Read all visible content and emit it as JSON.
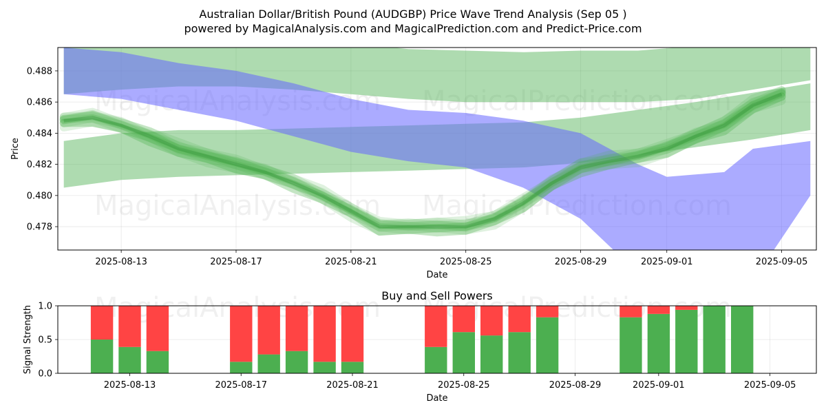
{
  "header": {
    "title": "Australian Dollar/British Pound (AUDGBP) Price Wave Trend Analysis (Sep 05 )",
    "subtitle": "powered by MagicalAnalysis.com and MagicalPrediction.com and Predict-Price.com"
  },
  "watermarks": [
    "MagicalAnalysis.com",
    "MagicalPrediction.com"
  ],
  "colors": {
    "green_band": "#4caf50",
    "blue_band": "#6666ff",
    "buy": "#4caf50",
    "sell": "#ff4444"
  },
  "chart_data": [
    {
      "type": "area",
      "title": "",
      "xlabel": "Date",
      "ylabel": "Price",
      "x_ticks": [
        "2025-08-13",
        "2025-08-17",
        "2025-08-21",
        "2025-08-25",
        "2025-08-29",
        "2025-09-01",
        "2025-09-05"
      ],
      "y_ticks": [
        "0.478",
        "0.480",
        "0.482",
        "0.484",
        "0.486",
        "0.488"
      ],
      "ylim": [
        0.4765,
        0.4895
      ],
      "xlim": [
        "2025-08-10T19:00",
        "2025-09-06T05:00"
      ],
      "grid": true,
      "series": [
        {
          "color": "blue",
          "x": [
            "2025-08-11",
            "2025-08-13",
            "2025-08-15",
            "2025-08-17",
            "2025-08-19",
            "2025-08-21",
            "2025-08-23",
            "2025-08-25",
            "2025-08-27",
            "2025-08-29",
            "2025-08-31",
            "2025-09-01",
            "2025-09-03",
            "2025-09-04",
            "2025-09-06"
          ],
          "upper": [
            0.4895,
            0.4892,
            0.4885,
            0.488,
            0.4872,
            0.4862,
            0.4855,
            0.4853,
            0.4848,
            0.484,
            0.482,
            0.4812,
            0.4815,
            0.483,
            0.4835
          ],
          "lower": [
            0.4865,
            0.4862,
            0.4855,
            0.4848,
            0.4838,
            0.4828,
            0.4822,
            0.4818,
            0.4805,
            0.4785,
            0.475,
            0.4712,
            0.4715,
            0.4745,
            0.48
          ]
        },
        {
          "color": "green",
          "x": [
            "2025-08-11",
            "2025-08-13",
            "2025-08-15",
            "2025-08-17",
            "2025-08-19",
            "2025-08-21",
            "2025-08-23",
            "2025-08-25",
            "2025-08-27",
            "2025-08-29",
            "2025-08-31",
            "2025-09-02",
            "2025-09-04",
            "2025-09-06"
          ],
          "upper": [
            0.49,
            0.49,
            0.49,
            0.49,
            0.49,
            0.4898,
            0.4894,
            0.4893,
            0.4892,
            0.4893,
            0.4893,
            0.4896,
            0.4899,
            0.49
          ],
          "lower": [
            0.4865,
            0.4868,
            0.487,
            0.487,
            0.4868,
            0.4865,
            0.4862,
            0.486,
            0.486,
            0.486,
            0.486,
            0.4862,
            0.4868,
            0.4874
          ]
        },
        {
          "color": "green",
          "x": [
            "2025-08-11",
            "2025-08-13",
            "2025-08-15",
            "2025-08-17",
            "2025-08-19",
            "2025-08-21",
            "2025-08-23",
            "2025-08-25",
            "2025-08-27",
            "2025-08-29",
            "2025-08-31",
            "2025-09-02",
            "2025-09-04",
            "2025-09-06"
          ],
          "upper": [
            0.4835,
            0.484,
            0.4842,
            0.4842,
            0.4843,
            0.4844,
            0.4845,
            0.4846,
            0.4847,
            0.485,
            0.4855,
            0.486,
            0.4866,
            0.4872
          ],
          "lower": [
            0.4805,
            0.481,
            0.4812,
            0.4813,
            0.4814,
            0.4815,
            0.4816,
            0.4817,
            0.4818,
            0.4821,
            0.4826,
            0.4831,
            0.4836,
            0.4842
          ]
        },
        {
          "color": "green",
          "x": [
            "2025-08-11",
            "2025-08-12",
            "2025-08-13",
            "2025-08-14",
            "2025-08-15",
            "2025-08-16",
            "2025-08-17",
            "2025-08-18",
            "2025-08-19",
            "2025-08-20",
            "2025-08-21",
            "2025-08-22",
            "2025-08-23",
            "2025-08-24",
            "2025-08-25",
            "2025-08-26",
            "2025-08-27",
            "2025-08-28",
            "2025-08-29",
            "2025-08-30",
            "2025-08-31",
            "2025-09-01",
            "2025-09-02",
            "2025-09-03",
            "2025-09-04",
            "2025-09-05"
          ],
          "y": [
            0.4848,
            0.485,
            0.4845,
            0.4838,
            0.483,
            0.4825,
            0.482,
            0.4815,
            0.4808,
            0.48,
            0.479,
            0.478,
            0.478,
            0.478,
            0.478,
            0.4785,
            0.4795,
            0.4808,
            0.4818,
            0.4822,
            0.4825,
            0.483,
            0.4838,
            0.4845,
            0.4858,
            0.4865
          ]
        }
      ]
    },
    {
      "type": "bar",
      "title": "Buy and Sell Powers",
      "xlabel": "Date",
      "ylabel": "Signal Strength",
      "ylim": [
        0,
        1
      ],
      "y_ticks": [
        "0.0",
        "0.5",
        "1.0"
      ],
      "x_ticks": [
        "2025-08-13",
        "2025-08-17",
        "2025-08-21",
        "2025-08-25",
        "2025-08-29",
        "2025-09-01",
        "2025-09-05"
      ],
      "grid": true,
      "categories": [
        "2025-08-12",
        "2025-08-13",
        "2025-08-14",
        "2025-08-17",
        "2025-08-18",
        "2025-08-19",
        "2025-08-20",
        "2025-08-21",
        "2025-08-24",
        "2025-08-25",
        "2025-08-26",
        "2025-08-27",
        "2025-08-28",
        "2025-08-31",
        "2025-09-01",
        "2025-09-02",
        "2025-09-03",
        "2025-09-04"
      ],
      "series": [
        {
          "values": [
            0.5,
            0.39,
            0.33,
            0.17,
            0.28,
            0.33,
            0.17,
            0.17,
            0.39,
            0.61,
            0.56,
            0.61,
            0.83,
            0.83,
            0.88,
            0.94,
            1.0,
            1.0
          ]
        },
        {
          "values": [
            0.5,
            0.61,
            0.67,
            0.83,
            0.72,
            0.67,
            0.83,
            0.83,
            0.61,
            0.39,
            0.44,
            0.39,
            0.17,
            0.17,
            0.12,
            0.06,
            0.0,
            0.0
          ]
        }
      ]
    }
  ]
}
